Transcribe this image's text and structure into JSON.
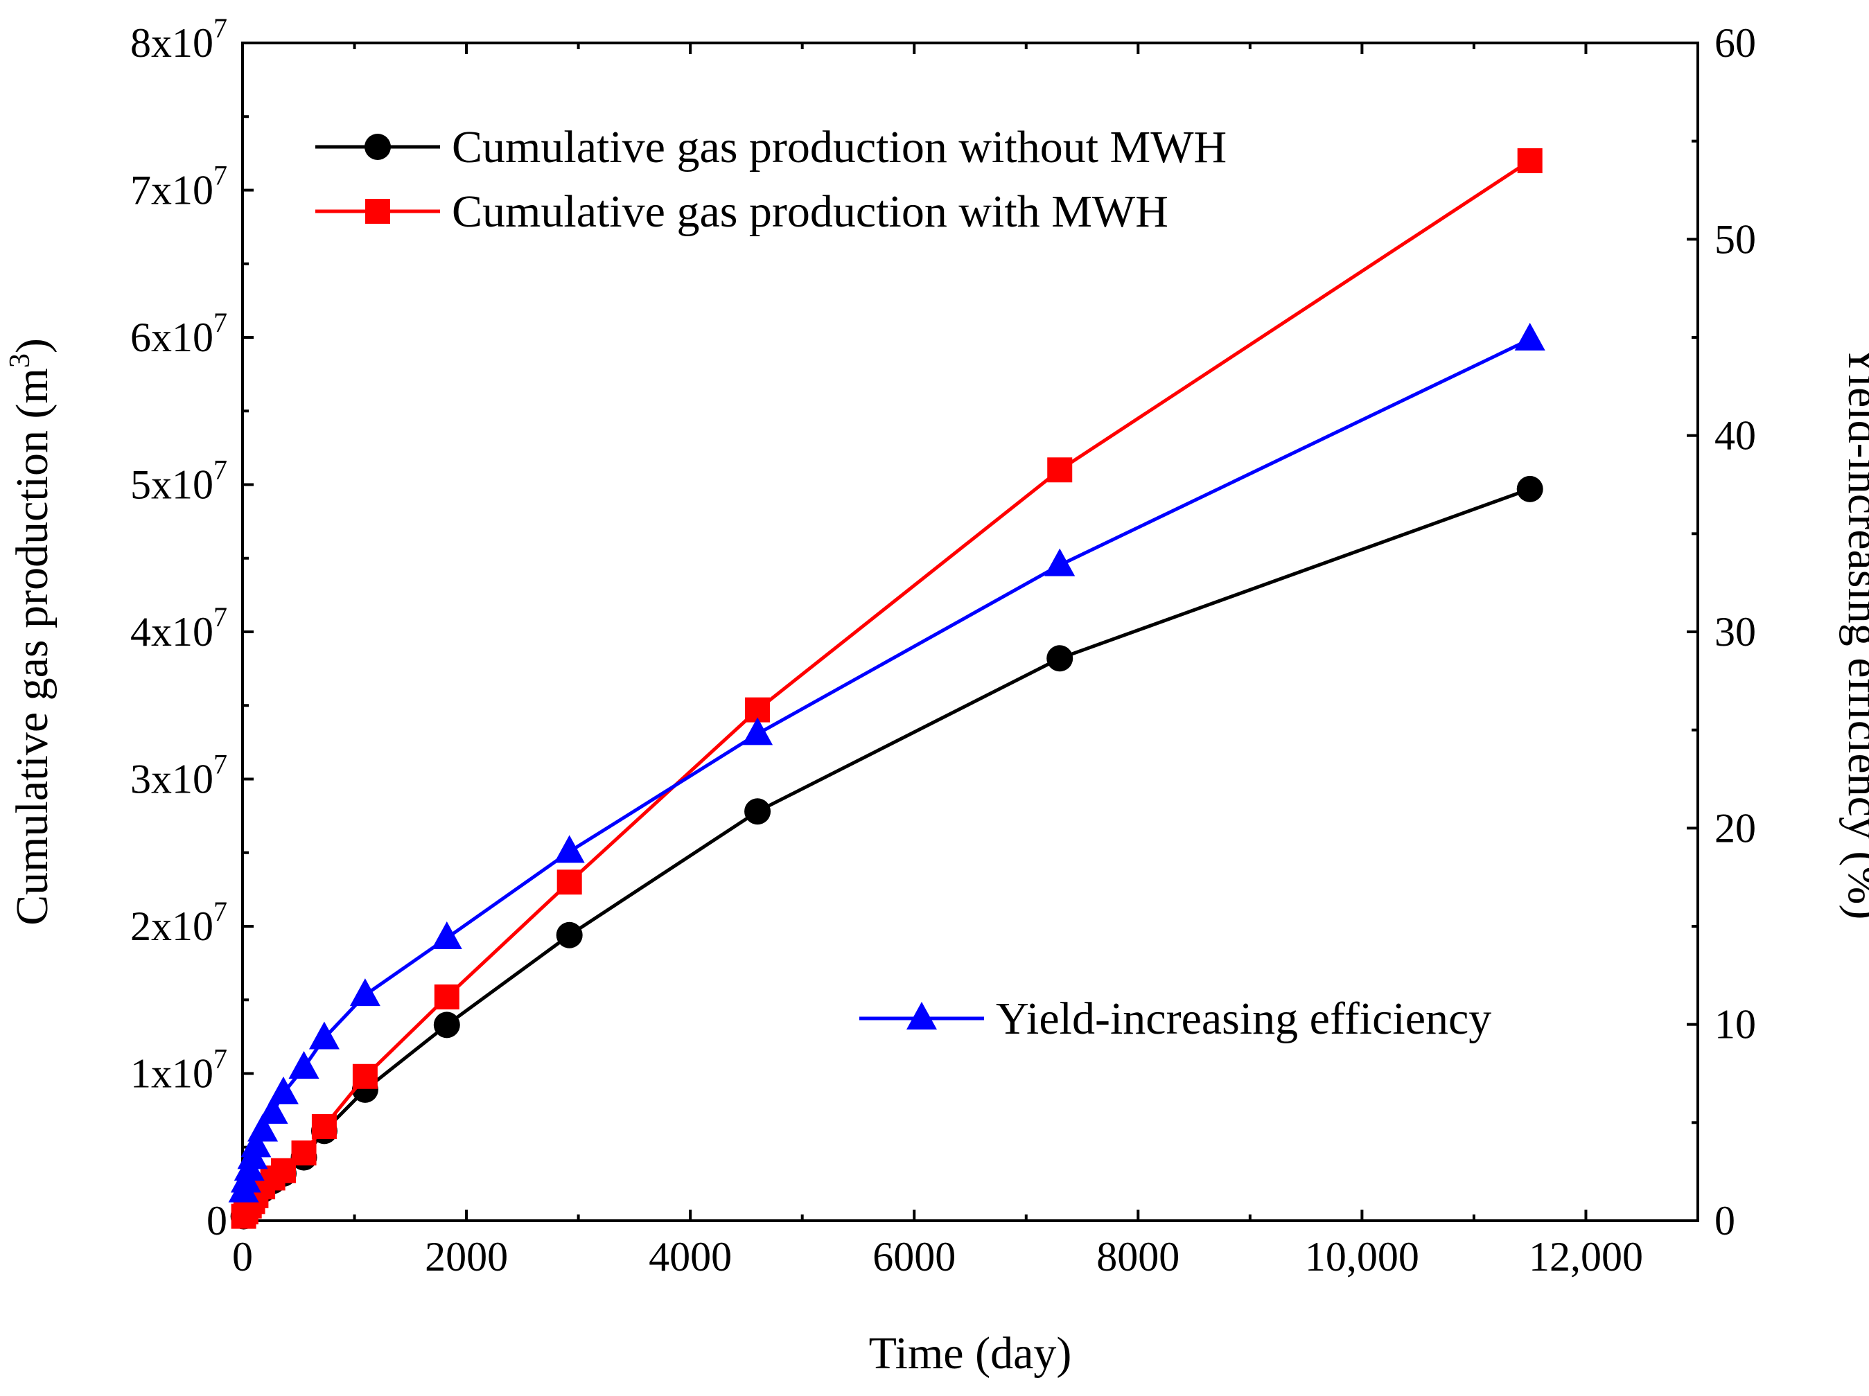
{
  "chart_data": {
    "type": "line",
    "title": "",
    "xlabel": "Time (day)",
    "ylabel": "Cumulative gas production (m",
    "ylabel_sup": "3",
    "ylabel_end": ")",
    "y2label": "Yield-increasing efficiency (%)",
    "xlim": [
      0,
      13000
    ],
    "ylim": [
      0,
      80000000
    ],
    "y2lim": [
      0,
      60
    ],
    "x_ticks": [
      {
        "value": 0,
        "label": "0"
      },
      {
        "value": 2000,
        "label": "2000"
      },
      {
        "value": 4000,
        "label": "4000"
      },
      {
        "value": 6000,
        "label": "6000"
      },
      {
        "value": 8000,
        "label": "8000"
      },
      {
        "value": 10000,
        "label": "10,000"
      },
      {
        "value": 12000,
        "label": "12,000"
      }
    ],
    "y_ticks": [
      {
        "value": 0,
        "base": "0",
        "exp": ""
      },
      {
        "value": 10000000,
        "base": "1x10",
        "exp": "7"
      },
      {
        "value": 20000000,
        "base": "2x10",
        "exp": "7"
      },
      {
        "value": 30000000,
        "base": "3x10",
        "exp": "7"
      },
      {
        "value": 40000000,
        "base": "4x10",
        "exp": "7"
      },
      {
        "value": 50000000,
        "base": "5x10",
        "exp": "7"
      },
      {
        "value": 60000000,
        "base": "6x10",
        "exp": "7"
      },
      {
        "value": 70000000,
        "base": "7x10",
        "exp": "7"
      },
      {
        "value": 80000000,
        "base": "8x10",
        "exp": "7"
      }
    ],
    "y2_ticks": [
      {
        "value": 0,
        "label": "0"
      },
      {
        "value": 10,
        "label": "10"
      },
      {
        "value": 20,
        "label": "20"
      },
      {
        "value": 30,
        "label": "30"
      },
      {
        "value": 40,
        "label": "40"
      },
      {
        "value": 50,
        "label": "50"
      },
      {
        "value": 60,
        "label": "60"
      }
    ],
    "series": [
      {
        "name": "Cumulative gas production without MWH",
        "axis": "left",
        "color": "#000000",
        "marker": "circle",
        "x": [
          10,
          30,
          60,
          90,
          120,
          180,
          270,
          365,
          548,
          730,
          1095,
          1825,
          2920,
          4600,
          7300,
          11500
        ],
        "values": [
          300000,
          600000,
          1000000,
          1300000,
          1600000,
          2100000,
          2700000,
          3200000,
          4300000,
          6100000,
          8900000,
          13300000,
          19400000,
          27800000,
          38200000,
          49700000
        ]
      },
      {
        "name": "Cumulative gas production with MWH",
        "axis": "left",
        "color": "#ff0000",
        "marker": "square",
        "x": [
          10,
          30,
          60,
          90,
          120,
          180,
          270,
          365,
          548,
          730,
          1095,
          1825,
          2920,
          4600,
          7300,
          11500
        ],
        "values": [
          300000,
          600000,
          1000000,
          1300000,
          1700000,
          2300000,
          2900000,
          3400000,
          4600000,
          6400000,
          9800000,
          15200000,
          23000000,
          34700000,
          51000000,
          72000000
        ]
      },
      {
        "name": "Yield-increasing efficiency",
        "axis": "right",
        "color": "#0000ff",
        "marker": "triangle",
        "x": [
          10,
          30,
          60,
          90,
          120,
          180,
          270,
          365,
          548,
          730,
          1095,
          1825,
          2920,
          4600,
          7300,
          11500
        ],
        "values": [
          1.5,
          2.0,
          2.6,
          3.2,
          3.8,
          4.6,
          5.5,
          6.5,
          7.8,
          9.3,
          11.5,
          14.4,
          18.8,
          24.8,
          33.4,
          44.9
        ]
      }
    ]
  }
}
